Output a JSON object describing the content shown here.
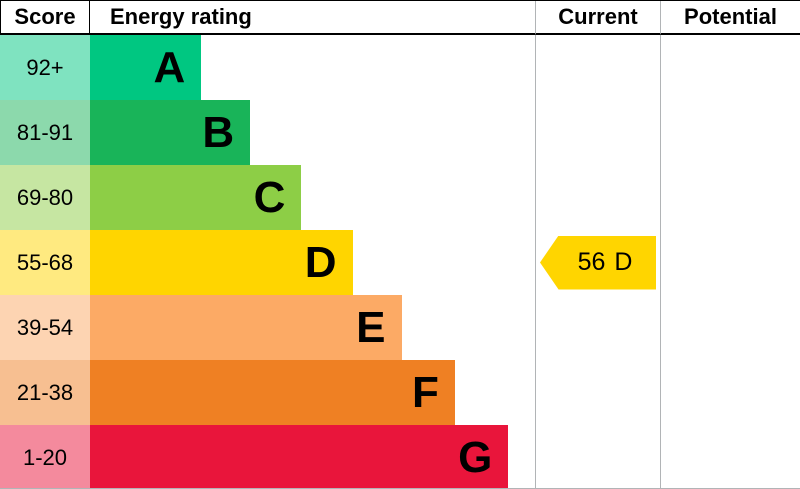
{
  "header": {
    "score": "Score",
    "energy_rating": "Energy rating",
    "current": "Current",
    "potential": "Potential"
  },
  "chart_data": {
    "type": "bar",
    "title": "Energy rating",
    "orientation": "horizontal",
    "columns": [
      "Score",
      "Energy rating",
      "Current",
      "Potential"
    ],
    "bands": [
      {
        "score": "92+",
        "letter": "A",
        "color": "#00c781",
        "score_bg": "#7fe3c0",
        "width_pct": 25
      },
      {
        "score": "81-91",
        "letter": "B",
        "color": "#19b459",
        "score_bg": "#8cd9ac",
        "width_pct": 36
      },
      {
        "score": "69-80",
        "letter": "C",
        "color": "#8dce46",
        "score_bg": "#c6e6a2",
        "width_pct": 47.5
      },
      {
        "score": "55-68",
        "letter": "D",
        "color": "#ffd500",
        "score_bg": "#ffea80",
        "width_pct": 59
      },
      {
        "score": "39-54",
        "letter": "E",
        "color": "#fcaa65",
        "score_bg": "#fdd4b2",
        "width_pct": 70
      },
      {
        "score": "21-38",
        "letter": "F",
        "color": "#ef8023",
        "score_bg": "#f7bf91",
        "width_pct": 82
      },
      {
        "score": "1-20",
        "letter": "G",
        "color": "#e9153b",
        "score_bg": "#f48a9d",
        "width_pct": 94
      }
    ],
    "current": {
      "value": "56",
      "letter": "D",
      "color": "#ffd500",
      "band_index": 3
    },
    "potential": {
      "value": ""
    }
  }
}
